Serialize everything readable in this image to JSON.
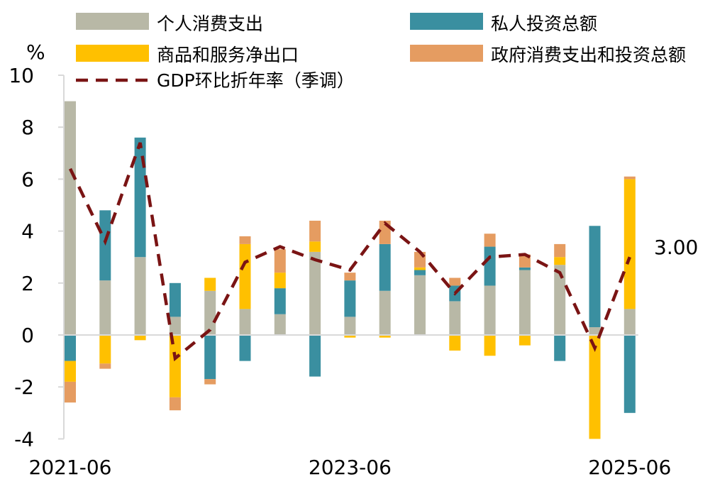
{
  "chart_data": {
    "type": "bar",
    "stacked": true,
    "y_unit_label": "%",
    "ylim": [
      -4,
      10
    ],
    "yticks": [
      -4,
      -2,
      0,
      2,
      4,
      6,
      8,
      10
    ],
    "ytick_labels": [
      "-4",
      "-2",
      "0",
      "2",
      "4",
      "6",
      "8",
      "10"
    ],
    "categories": [
      "2021-06",
      "2021-09",
      "2021-12",
      "2022-03",
      "2022-06",
      "2022-09",
      "2022-12",
      "2023-03",
      "2023-06",
      "2023-09",
      "2023-12",
      "2024-03",
      "2024-06",
      "2024-09",
      "2024-12",
      "2025-03",
      "2025-06"
    ],
    "xtick_labels": [
      {
        "index": 0,
        "label": "2021-06"
      },
      {
        "index": 8,
        "label": "2023-06"
      },
      {
        "index": 16,
        "label": "2025-06"
      }
    ],
    "grid": false,
    "legend_position": "top",
    "series": [
      {
        "name": "个人消费支出",
        "kind": "bar",
        "color": "#b8b8a6",
        "values": [
          9.0,
          2.1,
          3.0,
          0.7,
          1.7,
          1.0,
          0.8,
          3.2,
          0.7,
          1.7,
          2.3,
          1.3,
          1.9,
          2.5,
          2.7,
          0.3,
          1.0
        ]
      },
      {
        "name": "私人投资总额",
        "kind": "bar",
        "color": "#3a8fa0",
        "values": [
          -1.0,
          2.7,
          4.6,
          1.3,
          -1.7,
          -1.0,
          1.0,
          -1.6,
          1.4,
          1.8,
          0.2,
          0.6,
          1.5,
          0.1,
          -1.0,
          3.9,
          -3.0
        ]
      },
      {
        "name": "商品和服务净出口",
        "kind": "bar",
        "color": "#ffc000",
        "values": [
          -0.8,
          -1.1,
          -0.2,
          -2.4,
          0.5,
          2.5,
          0.6,
          0.4,
          -0.1,
          -0.1,
          0.1,
          -0.6,
          -0.8,
          -0.4,
          0.3,
          -4.0,
          5.0
        ]
      },
      {
        "name": "政府消费支出和投资总额",
        "kind": "bar",
        "color": "#e59c61",
        "values": [
          -0.8,
          -0.2,
          0.0,
          -0.5,
          -0.2,
          0.3,
          0.9,
          0.8,
          0.3,
          0.9,
          0.6,
          0.3,
          0.5,
          0.5,
          0.5,
          0.0,
          0.1
        ]
      },
      {
        "name": "GDP环比折年率（季调）",
        "kind": "line",
        "color": "#7a1414",
        "dash": true,
        "values": [
          6.4,
          3.6,
          7.4,
          -0.9,
          0.2,
          2.8,
          3.4,
          2.9,
          2.5,
          4.3,
          3.2,
          1.6,
          3.0,
          3.1,
          2.4,
          -0.5,
          3.0
        ]
      }
    ],
    "annotations": [
      {
        "index": 16,
        "text": "3.00"
      }
    ]
  }
}
